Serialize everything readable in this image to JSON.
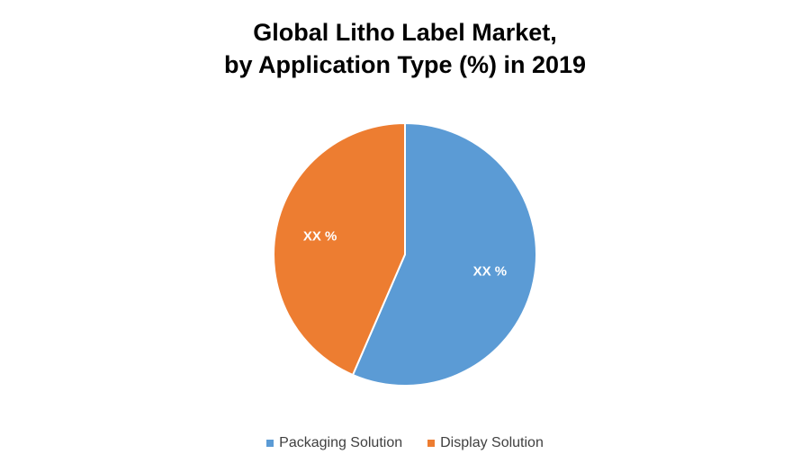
{
  "chart_data": {
    "type": "pie",
    "title_lines": [
      "Global Litho Label Market,",
      "by Application Type (%) in 2019"
    ],
    "categories": [
      "Packaging Solution",
      "Display Solution"
    ],
    "values": [
      56.5,
      43.5
    ],
    "data_labels": [
      "XX %",
      "XX %"
    ],
    "colors": [
      "#5B9BD5",
      "#ED7D31"
    ],
    "legend_position": "bottom"
  }
}
